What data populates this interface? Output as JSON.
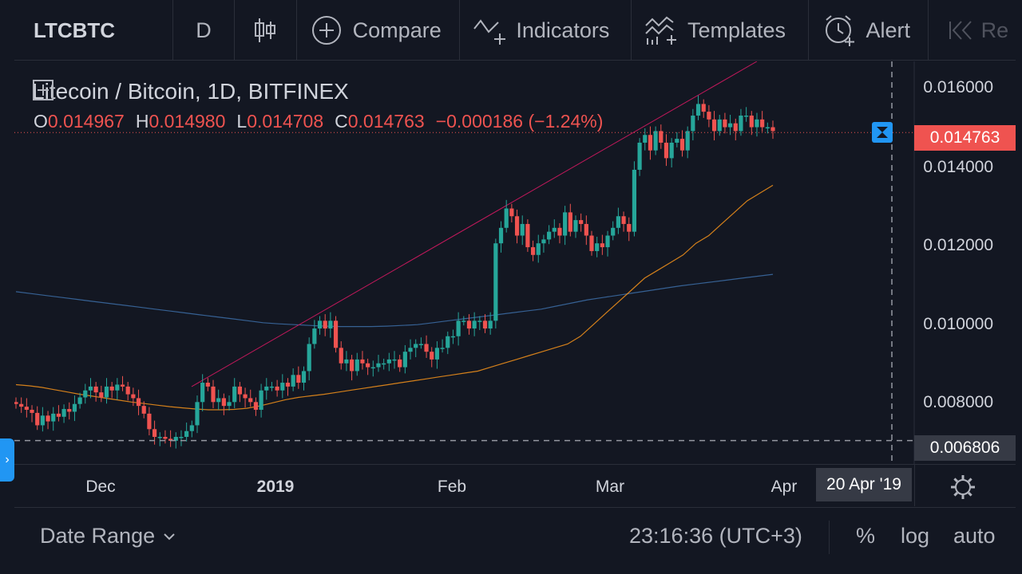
{
  "toolbar": {
    "symbol": "LTCBTC",
    "interval": "D",
    "compare_label": "Compare",
    "indicators_label": "Indicators",
    "templates_label": "Templates",
    "alert_label": "Alert",
    "replay_label": "Re",
    "icons": [
      "candles-icon",
      "plus-circle-icon",
      "indicators-icon",
      "templates-icon",
      "alarm-clock-icon",
      "rewind-icon"
    ]
  },
  "legend": {
    "title": "Litecoin / Bitcoin, 1D, BITFINEX",
    "o_label": "O",
    "o_value": "0.014967",
    "h_label": "H",
    "h_value": "0.014980",
    "l_label": "L",
    "l_value": "0.014708",
    "c_label": "C",
    "c_value": "0.014763",
    "change": "−0.000186 (−1.24%)"
  },
  "price_axis": {
    "ticks": [
      "0.016000",
      "0.014000",
      "0.012000",
      "0.010000",
      "0.008000"
    ],
    "last_price": "0.014763",
    "crosshair_price": "0.006806"
  },
  "time_axis": {
    "labels": [
      "Dec",
      "2019",
      "Feb",
      "Mar",
      "Apr"
    ],
    "crosshair_date": "20 Apr '19"
  },
  "bottom_bar": {
    "date_range": "Date Range",
    "clock": "23:16:36 (UTC+3)",
    "percent": "%",
    "log": "log",
    "auto": "auto"
  },
  "colors": {
    "up": "#26a69a",
    "down": "#ef5350",
    "ma_fast": "#f7931a",
    "ma_slow": "#2962ff",
    "trendline": "#c2185b",
    "accent": "#2196f3"
  },
  "chart_data": {
    "type": "candlestick",
    "y_range": [
      0.0062,
      0.0166
    ],
    "series": {
      "close": [
        0.00775,
        0.00768,
        0.0076,
        0.00752,
        0.0072,
        0.00745,
        0.0073,
        0.0075,
        0.00742,
        0.00762,
        0.00755,
        0.00775,
        0.00792,
        0.0081,
        0.0082,
        0.00805,
        0.00792,
        0.0082,
        0.0081,
        0.00825,
        0.0082,
        0.008,
        0.0079,
        0.0077,
        0.0075,
        0.0071,
        0.0069,
        0.0069,
        0.00685,
        0.0068,
        0.0069,
        0.0069,
        0.00705,
        0.0072,
        0.0078,
        0.0083,
        0.0082,
        0.0078,
        0.0079,
        0.0077,
        0.0078,
        0.0082,
        0.008,
        0.0079,
        0.0078,
        0.0076,
        0.0081,
        0.0082,
        0.0082,
        0.0081,
        0.0083,
        0.0082,
        0.0085,
        0.0083,
        0.0086,
        0.0093,
        0.0097,
        0.0099,
        0.0097,
        0.0099,
        0.0092,
        0.0088,
        0.0089,
        0.0086,
        0.0089,
        0.0088,
        0.0087,
        0.0087,
        0.0088,
        0.0088,
        0.0089,
        0.0089,
        0.0087,
        0.0091,
        0.0092,
        0.0093,
        0.0093,
        0.0091,
        0.0089,
        0.0092,
        0.0092,
        0.0095,
        0.0095,
        0.0099,
        0.0099,
        0.0097,
        0.0099,
        0.0099,
        0.0097,
        0.0099,
        0.0119,
        0.0123,
        0.0128,
        0.0126,
        0.0121,
        0.0124,
        0.0118,
        0.0116,
        0.0119,
        0.012,
        0.0122,
        0.0123,
        0.0121,
        0.0127,
        0.0122,
        0.0125,
        0.0124,
        0.0121,
        0.0117,
        0.0119,
        0.0118,
        0.0121,
        0.0123,
        0.0126,
        0.0124,
        0.0122,
        0.0138,
        0.0145,
        0.0147,
        0.0143,
        0.0148,
        0.0145,
        0.0141,
        0.0145,
        0.0146,
        0.0143,
        0.0148,
        0.0152,
        0.0155,
        0.0153,
        0.0151,
        0.0148,
        0.0151,
        0.0149,
        0.015,
        0.0148,
        0.0152,
        0.0152,
        0.0149,
        0.0151,
        0.0149,
        0.0149,
        0.0148
      ],
      "open": [
        0.0078,
        0.00775,
        0.00768,
        0.0076,
        0.00752,
        0.0072,
        0.00745,
        0.0073,
        0.0075,
        0.00742,
        0.00762,
        0.00755,
        0.00775,
        0.00792,
        0.0081,
        0.0082,
        0.00805,
        0.00792,
        0.0082,
        0.0081,
        0.00825,
        0.0082,
        0.008,
        0.0079,
        0.0077,
        0.0075,
        0.0071,
        0.0069,
        0.0069,
        0.00685,
        0.0068,
        0.0069,
        0.0069,
        0.00705,
        0.0072,
        0.0078,
        0.0083,
        0.0082,
        0.0078,
        0.0079,
        0.0077,
        0.0078,
        0.0082,
        0.008,
        0.0079,
        0.0078,
        0.0076,
        0.0081,
        0.0082,
        0.0082,
        0.0081,
        0.0083,
        0.0082,
        0.0085,
        0.0083,
        0.0086,
        0.0093,
        0.0097,
        0.0099,
        0.0097,
        0.0099,
        0.0092,
        0.0088,
        0.0089,
        0.0086,
        0.0089,
        0.0088,
        0.0087,
        0.0087,
        0.0088,
        0.0088,
        0.0089,
        0.0089,
        0.0087,
        0.0091,
        0.0092,
        0.0093,
        0.0093,
        0.0091,
        0.0089,
        0.0092,
        0.0092,
        0.0095,
        0.0095,
        0.0099,
        0.0099,
        0.0097,
        0.0099,
        0.0099,
        0.0097,
        0.0099,
        0.0119,
        0.0123,
        0.0128,
        0.0126,
        0.0121,
        0.0124,
        0.0118,
        0.0116,
        0.0119,
        0.012,
        0.0122,
        0.0123,
        0.0121,
        0.0127,
        0.0122,
        0.0125,
        0.0124,
        0.0121,
        0.0117,
        0.0119,
        0.0118,
        0.0121,
        0.0123,
        0.0126,
        0.0124,
        0.0122,
        0.0138,
        0.0145,
        0.0147,
        0.0143,
        0.0148,
        0.0145,
        0.0141,
        0.0145,
        0.0146,
        0.0143,
        0.0148,
        0.0152,
        0.0155,
        0.0153,
        0.0151,
        0.0148,
        0.0151,
        0.0149,
        0.015,
        0.0148,
        0.0152,
        0.0152,
        0.0149,
        0.0151,
        0.0149,
        0.0149
      ],
      "ma_fast": [
        0.00825,
        0.00822,
        0.00818,
        0.00812,
        0.00806,
        0.008,
        0.00795,
        0.0079,
        0.00785,
        0.0078,
        0.00776,
        0.00772,
        0.00768,
        0.00765,
        0.00762,
        0.0076,
        0.0076,
        0.00761,
        0.00764,
        0.0077,
        0.00778,
        0.00786,
        0.00792,
        0.00796,
        0.008,
        0.00805,
        0.0081,
        0.00815,
        0.0082,
        0.00825,
        0.0083,
        0.00835,
        0.0084,
        0.00845,
        0.0085,
        0.00855,
        0.0086,
        0.0087,
        0.0088,
        0.0089,
        0.009,
        0.0091,
        0.0092,
        0.0093,
        0.0095,
        0.0098,
        0.0101,
        0.0104,
        0.0107,
        0.011,
        0.0112,
        0.0114,
        0.0116,
        0.0119,
        0.0121,
        0.0124,
        0.0127,
        0.013,
        0.0132,
        0.0134
      ],
      "ma_slow": [
        0.01065,
        0.0106,
        0.01055,
        0.0105,
        0.01045,
        0.0104,
        0.01035,
        0.0103,
        0.01025,
        0.0102,
        0.01015,
        0.0101,
        0.01005,
        0.01,
        0.00995,
        0.0099,
        0.00985,
        0.00982,
        0.0098,
        0.00978,
        0.00976,
        0.00975,
        0.00975,
        0.00975,
        0.00976,
        0.00978,
        0.0098,
        0.00985,
        0.0099,
        0.00995,
        0.01,
        0.01005,
        0.0101,
        0.01015,
        0.0102,
        0.01028,
        0.01036,
        0.01044,
        0.0105,
        0.01056,
        0.01062,
        0.01068,
        0.01074,
        0.0108,
        0.01085,
        0.0109,
        0.01095,
        0.011,
        0.01105,
        0.0111
      ]
    }
  }
}
